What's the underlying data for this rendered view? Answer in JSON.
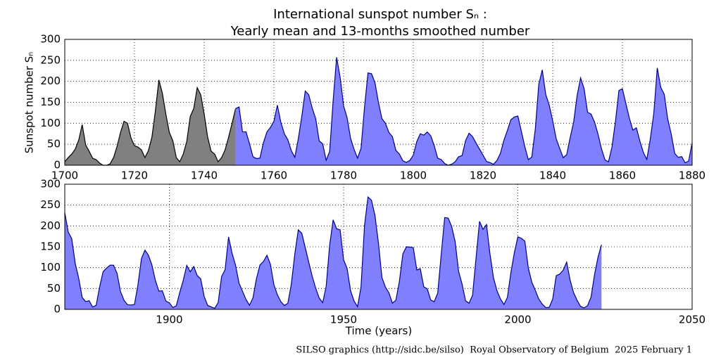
{
  "chart_data": [
    {
      "type": "area",
      "title": [
        "International sunspot number Sₙ :",
        "Yearly mean and 13-months smoothed number"
      ],
      "ylabel": "Sunspot number Sₙ",
      "xlim": [
        1700,
        1880
      ],
      "xticks": [
        1700,
        1720,
        1740,
        1760,
        1780,
        1800,
        1820,
        1840,
        1860,
        1880
      ],
      "ylim": [
        0,
        300
      ],
      "yticks": [
        0,
        50,
        100,
        150,
        200,
        250,
        300
      ],
      "grid": true,
      "series": [
        {
          "color": "#808080",
          "line_color": "#000000",
          "x": [
            1700,
            1701,
            1702,
            1703,
            1704,
            1705,
            1706,
            1707,
            1708,
            1709,
            1710,
            1711,
            1712,
            1713,
            1714,
            1715,
            1716,
            1717,
            1718,
            1719,
            1720,
            1721,
            1722,
            1723,
            1724,
            1725,
            1726,
            1727,
            1728,
            1729,
            1730,
            1731,
            1732,
            1733,
            1734,
            1735,
            1736,
            1737,
            1738,
            1739,
            1740,
            1741,
            1742,
            1743,
            1744,
            1745,
            1746,
            1747,
            1748,
            1749
          ],
          "values": [
            8.3,
            18.3,
            26.7,
            38.3,
            60.0,
            96.7,
            48.3,
            33.3,
            16.7,
            13.3,
            5.0,
            0,
            0,
            3.3,
            18.3,
            45.0,
            78.3,
            105.0,
            100.0,
            65.0,
            46.7,
            43.3,
            36.7,
            18.3,
            35.0,
            66.7,
            130.0,
            203.3,
            171.7,
            121.7,
            78.3,
            58.3,
            18.3,
            8.3,
            26.7,
            56.7,
            116.7,
            135.0,
            185.0,
            168.3,
            121.7,
            66.7,
            33.3,
            26.7,
            8.3,
            18.3,
            36.7,
            66.7,
            100.0,
            134.8
          ]
        },
        {
          "color": "#8080ff",
          "line_color": "#00008b",
          "x": [
            1749,
            1750,
            1751,
            1752,
            1753,
            1754,
            1755,
            1756,
            1757,
            1758,
            1759,
            1760,
            1761,
            1762,
            1763,
            1764,
            1765,
            1766,
            1767,
            1768,
            1769,
            1770,
            1771,
            1772,
            1773,
            1774,
            1775,
            1776,
            1777,
            1778,
            1779,
            1780,
            1781,
            1782,
            1783,
            1784,
            1785,
            1786,
            1787,
            1788,
            1789,
            1790,
            1791,
            1792,
            1793,
            1794,
            1795,
            1796,
            1797,
            1798,
            1799,
            1800,
            1801,
            1802,
            1803,
            1804,
            1805,
            1806,
            1807,
            1808,
            1809,
            1810,
            1811,
            1812,
            1813,
            1814,
            1815,
            1816,
            1817,
            1818,
            1819,
            1820,
            1821,
            1822,
            1823,
            1824,
            1825,
            1826,
            1827,
            1828,
            1829,
            1830,
            1831,
            1832,
            1833,
            1834,
            1835,
            1836,
            1837,
            1838,
            1839,
            1840,
            1841,
            1842,
            1843,
            1844,
            1845,
            1846,
            1847,
            1848,
            1849,
            1850,
            1851,
            1852,
            1853,
            1854,
            1855,
            1856,
            1857,
            1858,
            1859,
            1860,
            1861,
            1862,
            1863,
            1864,
            1865,
            1866,
            1867,
            1868,
            1869,
            1870,
            1871,
            1872,
            1873,
            1874,
            1875,
            1876,
            1877,
            1878,
            1879,
            1880
          ],
          "values": [
            134.8,
            139.0,
            79.5,
            79.7,
            51.2,
            20.3,
            16.0,
            17.0,
            54.0,
            79.3,
            90.0,
            104.8,
            143.2,
            102.0,
            75.2,
            60.7,
            34.8,
            19.0,
            63.0,
            116.3,
            176.8,
            168.0,
            136.0,
            110.8,
            58.0,
            51.0,
            11.7,
            33.0,
            154.2,
            257.3,
            209.8,
            141.3,
            113.5,
            64.2,
            38.0,
            17.0,
            40.2,
            138.2,
            220.0,
            218.2,
            196.8,
            149.8,
            111.0,
            100.0,
            78.2,
            68.3,
            35.5,
            26.7,
            10.7,
            6.8,
            11.3,
            24.2,
            56.7,
            75.0,
            71.8,
            79.2,
            70.3,
            46.8,
            16.8,
            13.5,
            4.2,
            0,
            2.3,
            8.3,
            20.3,
            23.2,
            59.0,
            76.3,
            68.3,
            52.9,
            38.5,
            24.2,
            9.2,
            6.3,
            2.2,
            11.4,
            28.2,
            59.9,
            83.0,
            108.5,
            115.2,
            117.4,
            80.8,
            44.3,
            13.4,
            19.5,
            85.8,
            192.7,
            227.3,
            168.7,
            143.0,
            105.5,
            63.3,
            40.3,
            18.1,
            25.1,
            65.8,
            102.7,
            166.3,
            208.3,
            182.5,
            126.3,
            122.0,
            102.7,
            74.1,
            39.0,
            12.7,
            8.2,
            43.4,
            104.4,
            178.3,
            182.2,
            146.6,
            112.1,
            83.5,
            89.2,
            57.8,
            30.7,
            13.9,
            62.8,
            123.6,
            232.0,
            185.3,
            169.2,
            110.1,
            74.5,
            28.3,
            18.9,
            20.7,
            5.7,
            10.0,
            53.7
          ]
        }
      ]
    },
    {
      "type": "area",
      "xlabel": "Time (years)",
      "xlim": [
        1870,
        2050
      ],
      "xticks": [
        1900,
        1950,
        2000,
        2050
      ],
      "ylim": [
        0,
        300
      ],
      "yticks": [
        0,
        50,
        100,
        150,
        200,
        250,
        300
      ],
      "grid": true,
      "series": [
        {
          "color": "#8080ff",
          "line_color": "#00008b",
          "x": [
            1870,
            1871,
            1872,
            1873,
            1874,
            1875,
            1876,
            1877,
            1878,
            1879,
            1880,
            1881,
            1882,
            1883,
            1884,
            1885,
            1886,
            1887,
            1888,
            1889,
            1890,
            1891,
            1892,
            1893,
            1894,
            1895,
            1896,
            1897,
            1898,
            1899,
            1900,
            1901,
            1902,
            1903,
            1904,
            1905,
            1906,
            1907,
            1908,
            1909,
            1910,
            1911,
            1912,
            1913,
            1914,
            1915,
            1916,
            1917,
            1918,
            1919,
            1920,
            1921,
            1922,
            1923,
            1924,
            1925,
            1926,
            1927,
            1928,
            1929,
            1930,
            1931,
            1932,
            1933,
            1934,
            1935,
            1936,
            1937,
            1938,
            1939,
            1940,
            1941,
            1942,
            1943,
            1944,
            1945,
            1946,
            1947,
            1948,
            1949,
            1950,
            1951,
            1952,
            1953,
            1954,
            1955,
            1956,
            1957,
            1958,
            1959,
            1960,
            1961,
            1962,
            1963,
            1964,
            1965,
            1966,
            1967,
            1968,
            1969,
            1970,
            1971,
            1972,
            1973,
            1974,
            1975,
            1976,
            1977,
            1978,
            1979,
            1980,
            1981,
            1982,
            1983,
            1984,
            1985,
            1986,
            1987,
            1988,
            1989,
            1990,
            1991,
            1992,
            1993,
            1994,
            1995,
            1996,
            1997,
            1998,
            1999,
            2000,
            2001,
            2002,
            2003,
            2004,
            2005,
            2006,
            2007,
            2008,
            2009,
            2010,
            2011,
            2012,
            2013,
            2014,
            2015,
            2016,
            2017,
            2018,
            2019,
            2020,
            2021,
            2022,
            2023,
            2024
          ],
          "values": [
            232.0,
            185.3,
            169.2,
            110.1,
            74.5,
            28.3,
            18.9,
            20.7,
            5.7,
            10.0,
            53.7,
            90.5,
            99.0,
            106.1,
            105.8,
            86.3,
            42.4,
            21.8,
            11.2,
            10.4,
            11.8,
            59.5,
            121.7,
            142.0,
            130.0,
            106.6,
            69.4,
            43.8,
            44.4,
            20.2,
            15.7,
            4.6,
            8.5,
            40.8,
            70.1,
            105.5,
            90.1,
            102.8,
            80.9,
            73.2,
            30.9,
            9.5,
            6.0,
            2.4,
            16.1,
            79.0,
            95.0,
            173.6,
            134.6,
            105.7,
            62.7,
            43.5,
            23.7,
            9.7,
            27.9,
            74.0,
            106.5,
            114.7,
            129.7,
            108.2,
            59.4,
            35.1,
            18.6,
            9.2,
            14.6,
            60.2,
            132.8,
            190.6,
            182.6,
            148.0,
            113.0,
            79.2,
            50.8,
            27.1,
            16.1,
            55.3,
            154.3,
            214.7,
            193.0,
            190.7,
            118.9,
            98.3,
            45.0,
            20.1,
            6.6,
            54.2,
            200.7,
            269.3,
            261.7,
            225.1,
            159.0,
            76.4,
            53.4,
            39.9,
            15.0,
            22.0,
            66.8,
            132.9,
            150.0,
            149.4,
            148.0,
            94.4,
            97.6,
            54.1,
            49.2,
            22.5,
            18.4,
            39.3,
            131.0,
            220.1,
            218.9,
            198.9,
            162.4,
            91.0,
            60.5,
            20.6,
            14.8,
            33.9,
            123.0,
            211.1,
            191.8,
            203.3,
            133.0,
            76.1,
            44.9,
            25.1,
            11.6,
            28.9,
            88.3,
            136.3,
            173.9,
            170.4,
            163.6,
            99.3,
            65.3,
            45.8,
            24.7,
            12.6,
            4.2,
            4.8,
            24.9,
            80.8,
            84.5,
            94.0,
            113.3,
            69.8,
            39.8,
            21.7,
            7.0,
            3.6,
            8.8,
            29.6,
            83.2,
            125.5,
            154.7
          ]
        }
      ]
    }
  ],
  "footer": "SILSO graphics (http://sidc.be/silso)  Royal Observatory of Belgium  2025 February 1"
}
